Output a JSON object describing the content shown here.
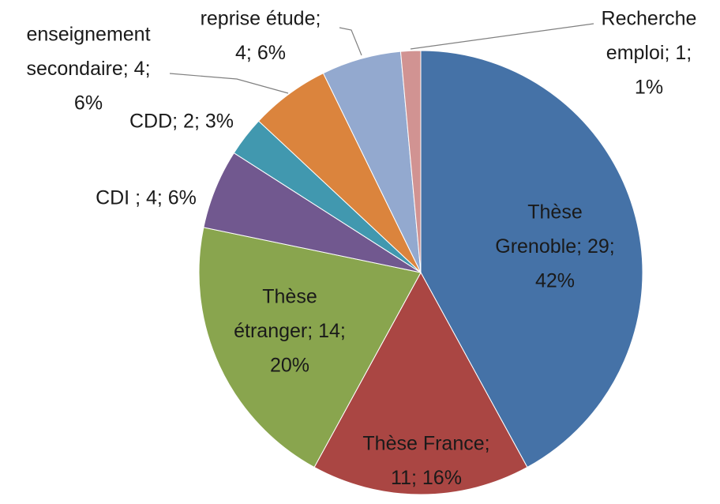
{
  "chart_data": {
    "type": "pie",
    "categories": [
      "Thèse Grenoble",
      "Thèse France",
      "Thèse étranger",
      "CDI",
      "CDD",
      "enseignement secondaire",
      "reprise étude",
      "Recherche emploi"
    ],
    "values": [
      29,
      11,
      14,
      4,
      2,
      4,
      4,
      1
    ],
    "value_labels": [
      [
        "Thèse",
        "Grenoble; 29;",
        "42%"
      ],
      [
        "Thèse France;",
        "11; 16%"
      ],
      [
        "Thèse",
        "étranger; 14;",
        "20%"
      ],
      [
        "CDI ; 4; 6%"
      ],
      [
        "CDD; 2; 3%"
      ],
      [
        "enseignement",
        "secondaire; 4;",
        "6%"
      ],
      [
        "reprise étude;",
        "4; 6%"
      ],
      [
        "Recherche",
        "emploi; 1;",
        "1%"
      ]
    ],
    "colors": [
      "#4572a7",
      "#aa4643",
      "#89a54e",
      "#71588f",
      "#4198af",
      "#db843d",
      "#93a9cf",
      "#d19392"
    ]
  }
}
